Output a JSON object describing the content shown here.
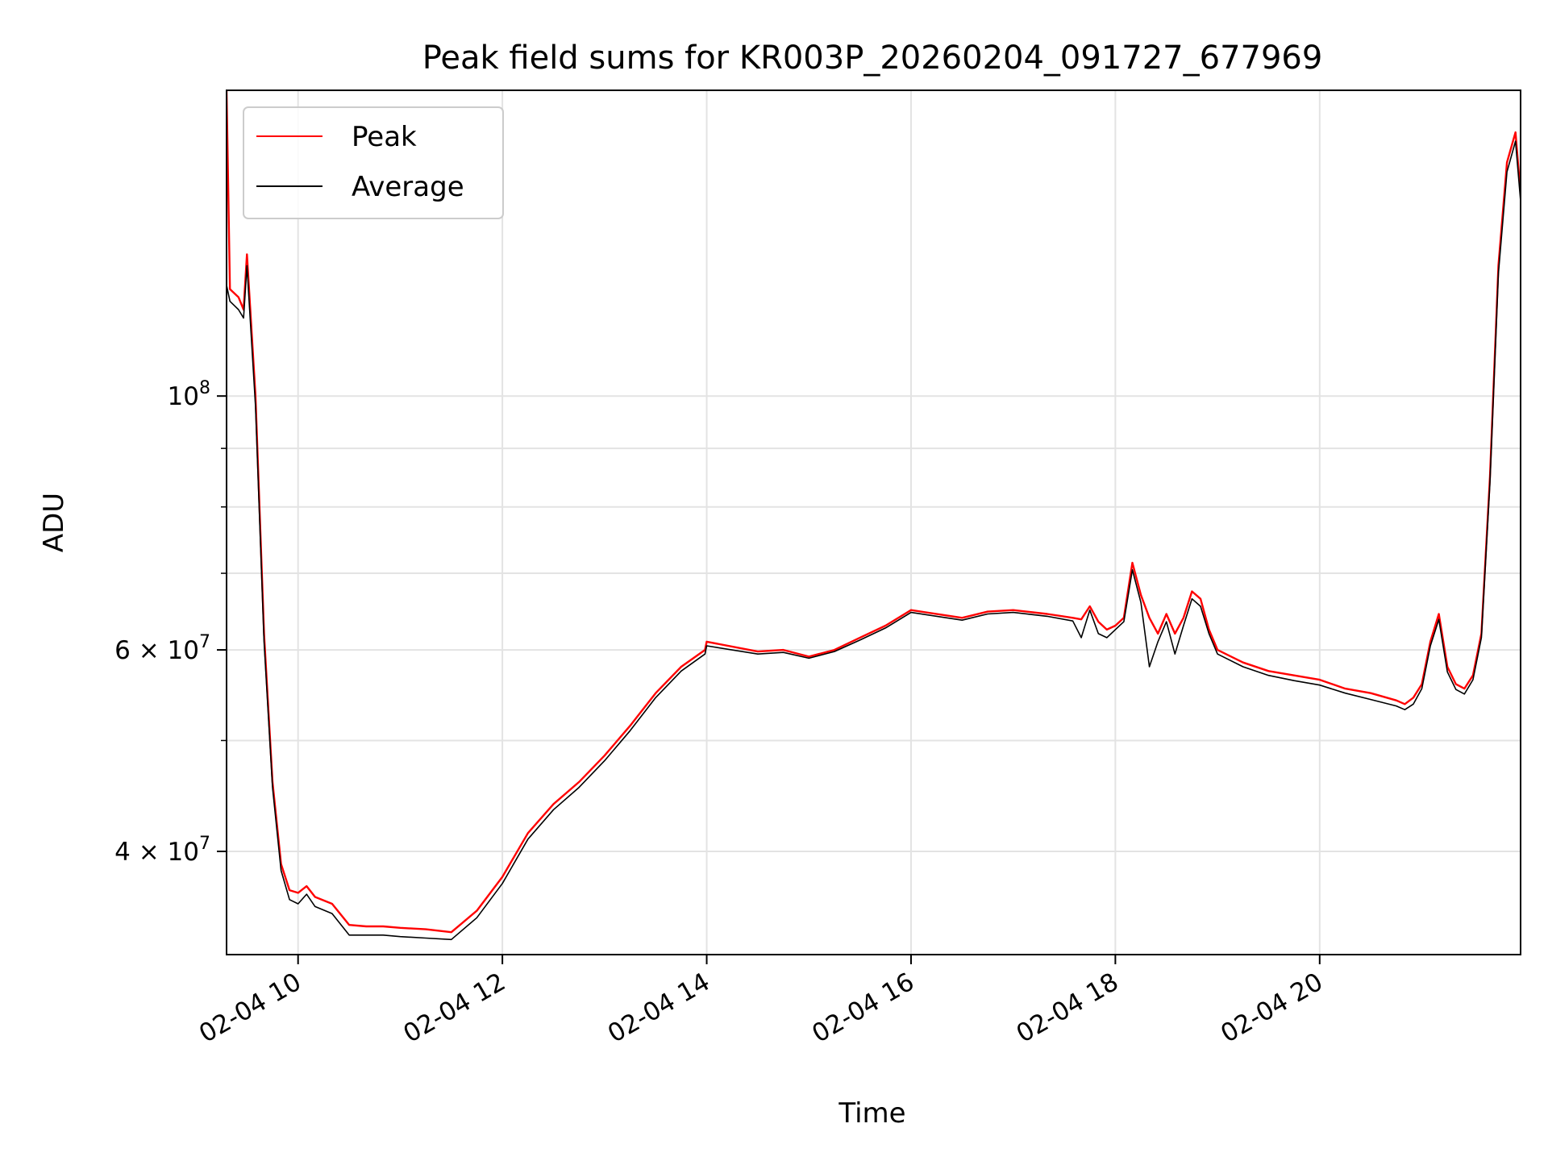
{
  "chart_data": {
    "type": "line",
    "title": "Peak field sums for KR003P_20260204_091727_677969",
    "xlabel": "Time",
    "ylabel": "ADU",
    "y_scale": "log",
    "ylim": [
      32500000,
      185000000
    ],
    "xlim": [
      "2026-02-04 09:18",
      "2026-02-04 21:58"
    ],
    "grid": true,
    "legend": "top-left",
    "x_ticks": [
      {
        "t": "2026-02-04 10:00",
        "label": "02-04 10"
      },
      {
        "t": "2026-02-04 12:00",
        "label": "02-04 12"
      },
      {
        "t": "2026-02-04 14:00",
        "label": "02-04 14"
      },
      {
        "t": "2026-02-04 16:00",
        "label": "02-04 16"
      },
      {
        "t": "2026-02-04 18:00",
        "label": "02-04 18"
      },
      {
        "t": "2026-02-04 20:00",
        "label": "02-04 20"
      }
    ],
    "y_ticks": [
      {
        "value": 40000000,
        "base": "4 × 10",
        "exp": "7"
      },
      {
        "value": 60000000,
        "base": "6 × 10",
        "exp": "7"
      },
      {
        "value": 100000000,
        "base": "10",
        "exp": "8"
      }
    ],
    "y_minor_ticks": [
      50000000,
      70000000,
      80000000,
      90000000
    ],
    "x": [
      "2026-02-04 09:18",
      "2026-02-04 09:20",
      "2026-02-04 09:25",
      "2026-02-04 09:28",
      "2026-02-04 09:30",
      "2026-02-04 09:35",
      "2026-02-04 09:40",
      "2026-02-04 09:45",
      "2026-02-04 09:50",
      "2026-02-04 09:55",
      "2026-02-04 10:00",
      "2026-02-04 10:05",
      "2026-02-04 10:10",
      "2026-02-04 10:20",
      "2026-02-04 10:30",
      "2026-02-04 10:40",
      "2026-02-04 10:50",
      "2026-02-04 11:00",
      "2026-02-04 11:15",
      "2026-02-04 11:30",
      "2026-02-04 11:45",
      "2026-02-04 12:00",
      "2026-02-04 12:15",
      "2026-02-04 12:30",
      "2026-02-04 12:45",
      "2026-02-04 13:00",
      "2026-02-04 13:15",
      "2026-02-04 13:30",
      "2026-02-04 13:45",
      "2026-02-04 13:59",
      "2026-02-04 14:00",
      "2026-02-04 14:30",
      "2026-02-04 14:45",
      "2026-02-04 15:00",
      "2026-02-04 15:15",
      "2026-02-04 15:30",
      "2026-02-04 15:45",
      "2026-02-04 16:00",
      "2026-02-04 16:30",
      "2026-02-04 16:45",
      "2026-02-04 17:00",
      "2026-02-04 17:20",
      "2026-02-04 17:35",
      "2026-02-04 17:40",
      "2026-02-04 17:45",
      "2026-02-04 17:50",
      "2026-02-04 17:55",
      "2026-02-04 18:00",
      "2026-02-04 18:05",
      "2026-02-04 18:10",
      "2026-02-04 18:15",
      "2026-02-04 18:20",
      "2026-02-04 18:25",
      "2026-02-04 18:30",
      "2026-02-04 18:35",
      "2026-02-04 18:40",
      "2026-02-04 18:45",
      "2026-02-04 18:50",
      "2026-02-04 18:55",
      "2026-02-04 19:00",
      "2026-02-04 19:15",
      "2026-02-04 19:30",
      "2026-02-04 19:45",
      "2026-02-04 20:00",
      "2026-02-04 20:15",
      "2026-02-04 20:30",
      "2026-02-04 20:45",
      "2026-02-04 20:50",
      "2026-02-04 20:55",
      "2026-02-04 21:00",
      "2026-02-04 21:05",
      "2026-02-04 21:10",
      "2026-02-04 21:15",
      "2026-02-04 21:20",
      "2026-02-04 21:25",
      "2026-02-04 21:30",
      "2026-02-04 21:35",
      "2026-02-04 21:40",
      "2026-02-04 21:45",
      "2026-02-04 21:50",
      "2026-02-04 21:55",
      "2026-02-04 21:58"
    ],
    "series": [
      {
        "name": "Peak",
        "color": "#ff0000",
        "values": [
          185000000,
          124000000,
          122000000,
          119000000,
          133000000,
          100000000,
          62000000,
          46000000,
          39000000,
          37000000,
          36800000,
          37300000,
          36500000,
          36000000,
          34500000,
          34400000,
          34400000,
          34300000,
          34200000,
          34000000,
          35500000,
          38000000,
          41500000,
          44000000,
          46000000,
          48500000,
          51500000,
          55000000,
          58000000,
          60000000,
          61000000,
          59800000,
          60000000,
          59200000,
          60000000,
          61500000,
          63000000,
          65000000,
          64000000,
          64800000,
          65000000,
          64500000,
          64000000,
          63800000,
          65500000,
          63500000,
          62500000,
          63000000,
          64000000,
          71500000,
          67000000,
          64000000,
          62000000,
          64500000,
          62000000,
          64000000,
          67500000,
          66500000,
          62500000,
          60000000,
          58500000,
          57500000,
          57000000,
          56500000,
          55500000,
          55000000,
          54200000,
          53800000,
          54500000,
          56000000,
          61000000,
          64500000,
          58000000,
          56000000,
          55500000,
          57000000,
          62000000,
          85000000,
          130000000,
          160000000,
          170000000,
          150000000
        ]
      },
      {
        "name": "Average",
        "color": "#000000",
        "values": [
          125000000,
          121000000,
          119000000,
          117000000,
          130000000,
          98000000,
          61000000,
          45500000,
          38500000,
          36300000,
          36000000,
          36700000,
          35800000,
          35300000,
          33800000,
          33800000,
          33800000,
          33700000,
          33600000,
          33500000,
          35000000,
          37500000,
          41000000,
          43500000,
          45500000,
          48000000,
          51000000,
          54500000,
          57500000,
          59500000,
          60500000,
          59500000,
          59700000,
          59000000,
          59800000,
          61200000,
          62700000,
          64700000,
          63700000,
          64500000,
          64700000,
          64200000,
          63600000,
          61500000,
          65000000,
          62000000,
          61500000,
          62500000,
          63500000,
          70500000,
          66000000,
          58000000,
          61000000,
          63500000,
          59500000,
          63000000,
          66500000,
          65500000,
          62000000,
          59500000,
          58000000,
          57000000,
          56400000,
          55900000,
          55000000,
          54300000,
          53600000,
          53200000,
          53800000,
          55500000,
          60500000,
          63800000,
          57400000,
          55400000,
          54900000,
          56500000,
          61500000,
          84000000,
          128000000,
          157000000,
          167000000,
          148000000
        ]
      }
    ]
  }
}
